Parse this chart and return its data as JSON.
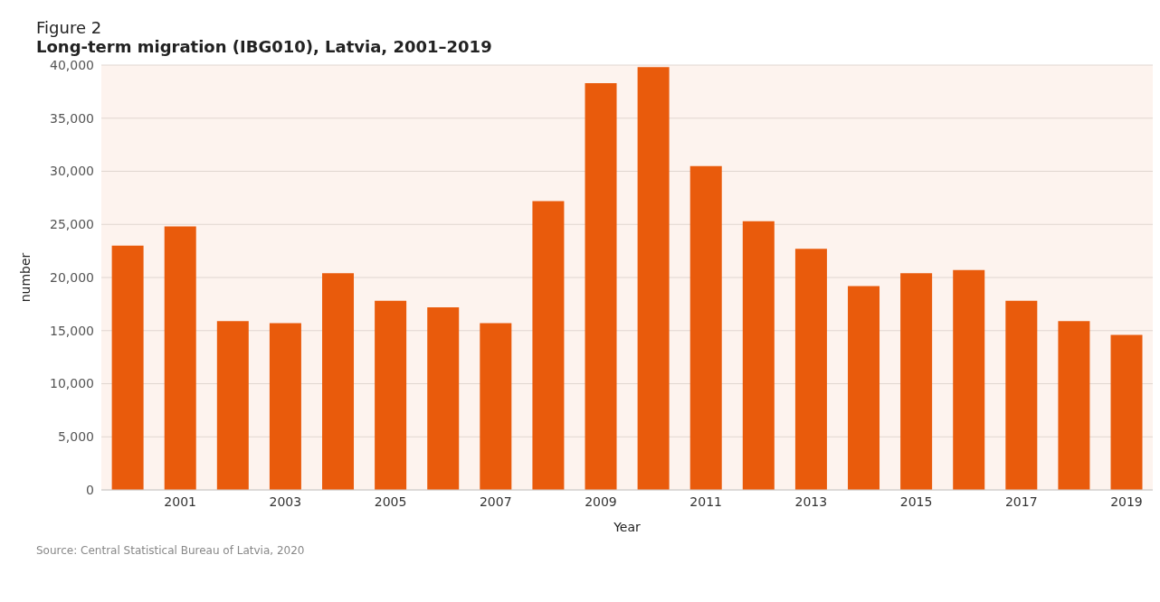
{
  "chart_data": {
    "type": "bar",
    "subtitle": "Figure 2",
    "title": "Long-term migration (IBG010), Latvia, 2001–2019",
    "xlabel": "Year",
    "ylabel": "number",
    "categories": [
      null,
      "2001",
      null,
      "2003",
      null,
      "2005",
      null,
      "2007",
      null,
      "2009",
      null,
      "2011",
      null,
      "2013",
      null,
      "2015",
      null,
      "2017",
      null,
      "2019"
    ],
    "values": [
      23000,
      24800,
      15900,
      15700,
      20400,
      17800,
      17200,
      15700,
      27200,
      38300,
      39800,
      30500,
      25300,
      22700,
      19200,
      20400,
      20700,
      17800,
      15900,
      14600
    ],
    "color": "#e95b0c",
    "ylim": [
      0,
      40000
    ],
    "yticks": [
      0,
      {
        "value": 5000,
        "label": "5,000"
      },
      {
        "value": 10000,
        "label": "10,000"
      },
      {
        "value": 15000,
        "label": "15,000"
      },
      {
        "value": 20000,
        "label": "20,000"
      },
      {
        "value": 25000,
        "label": "25,000"
      },
      {
        "value": 30000,
        "label": "30,000"
      },
      {
        "value": 35000,
        "label": "35,000"
      },
      {
        "value": 40000,
        "label": "40,000"
      }
    ],
    "grid": "y",
    "annotations": [
      "Source: Central Statistical Bureau of Latvia, 2020"
    ]
  }
}
